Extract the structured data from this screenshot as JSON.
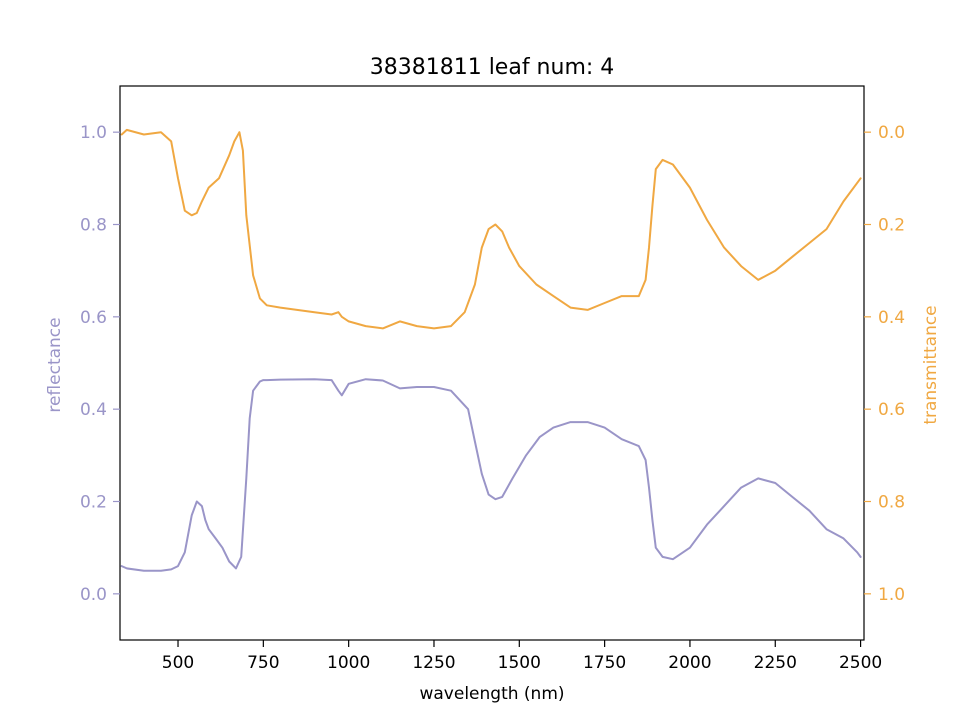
{
  "chart_data": {
    "type": "line",
    "title": "38381811 leaf num: 4",
    "xlabel": "wavelength (nm)",
    "ylabel": "reflectance",
    "y2label": "transmittance",
    "xlim": [
      330,
      2510
    ],
    "ylim": [
      -0.1,
      1.1
    ],
    "y2lim": [
      1.1,
      -0.1
    ],
    "y2_inverted": true,
    "xticks": [
      500,
      750,
      1000,
      1250,
      1500,
      1750,
      2000,
      2250,
      2500
    ],
    "yticks": [
      0.0,
      0.2,
      0.4,
      0.6,
      0.8,
      1.0
    ],
    "y2ticks": [
      0.0,
      0.2,
      0.4,
      0.6,
      0.8,
      1.0
    ],
    "grid": false,
    "legend": "none",
    "colors": {
      "reflectance": "#9a95c8",
      "transmittance": "#f0a842",
      "axis": "#000000"
    },
    "series": [
      {
        "axis": "left",
        "color": "#9a95c8",
        "x": [
          335,
          350,
          400,
          450,
          480,
          500,
          520,
          540,
          555,
          570,
          580,
          590,
          610,
          630,
          650,
          670,
          685,
          700,
          710,
          720,
          740,
          750,
          760,
          800,
          900,
          950,
          970,
          980,
          1000,
          1050,
          1100,
          1150,
          1200,
          1250,
          1300,
          1350,
          1370,
          1390,
          1410,
          1430,
          1450,
          1480,
          1520,
          1560,
          1600,
          1650,
          1700,
          1750,
          1800,
          1850,
          1870,
          1880,
          1890,
          1900,
          1920,
          1950,
          2000,
          2050,
          2100,
          2150,
          2200,
          2250,
          2300,
          2350,
          2400,
          2450,
          2490,
          2500
        ],
        "y": [
          0.06,
          0.055,
          0.05,
          0.05,
          0.053,
          0.06,
          0.09,
          0.17,
          0.2,
          0.19,
          0.16,
          0.14,
          0.12,
          0.1,
          0.07,
          0.055,
          0.08,
          0.25,
          0.38,
          0.44,
          0.46,
          0.463,
          0.463,
          0.464,
          0.465,
          0.463,
          0.44,
          0.43,
          0.455,
          0.465,
          0.462,
          0.445,
          0.448,
          0.448,
          0.44,
          0.4,
          0.33,
          0.26,
          0.215,
          0.205,
          0.21,
          0.25,
          0.3,
          0.34,
          0.36,
          0.372,
          0.372,
          0.36,
          0.335,
          0.32,
          0.29,
          0.23,
          0.16,
          0.1,
          0.08,
          0.075,
          0.1,
          0.15,
          0.19,
          0.23,
          0.25,
          0.24,
          0.21,
          0.18,
          0.14,
          0.12,
          0.09,
          0.08
        ]
      },
      {
        "axis": "right",
        "color": "#f0a842",
        "x": [
          335,
          350,
          400,
          450,
          480,
          500,
          520,
          540,
          555,
          570,
          590,
          620,
          650,
          665,
          680,
          690,
          700,
          720,
          740,
          760,
          800,
          900,
          950,
          970,
          980,
          1000,
          1050,
          1100,
          1150,
          1200,
          1250,
          1300,
          1340,
          1370,
          1390,
          1410,
          1430,
          1450,
          1470,
          1500,
          1550,
          1600,
          1650,
          1700,
          1750,
          1800,
          1850,
          1870,
          1880,
          1890,
          1900,
          1920,
          1950,
          2000,
          2050,
          2100,
          2150,
          2200,
          2250,
          2300,
          2350,
          2400,
          2450,
          2500
        ],
        "y": [
          0.005,
          -0.005,
          0.005,
          0.0,
          0.02,
          0.1,
          0.17,
          0.18,
          0.175,
          0.15,
          0.12,
          0.1,
          0.05,
          0.02,
          0.0,
          0.04,
          0.18,
          0.31,
          0.36,
          0.375,
          0.38,
          0.39,
          0.395,
          0.39,
          0.4,
          0.41,
          0.42,
          0.425,
          0.41,
          0.42,
          0.425,
          0.42,
          0.39,
          0.33,
          0.25,
          0.21,
          0.2,
          0.215,
          0.25,
          0.29,
          0.33,
          0.355,
          0.38,
          0.385,
          0.37,
          0.355,
          0.355,
          0.32,
          0.25,
          0.16,
          0.08,
          0.06,
          0.07,
          0.12,
          0.19,
          0.25,
          0.29,
          0.32,
          0.3,
          0.27,
          0.24,
          0.21,
          0.15,
          0.1
        ]
      }
    ]
  }
}
